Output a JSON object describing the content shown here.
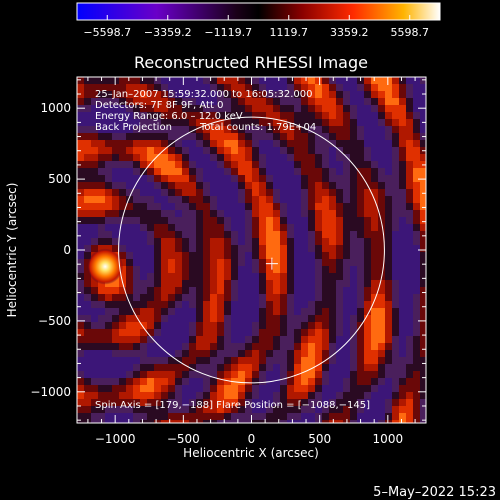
{
  "colorbar": {
    "tick_labels": [
      "−5598.7",
      "−3359.2",
      "−1119.7",
      "1119.7",
      "3359.2",
      "5598.7"
    ],
    "range": [
      -5598.7,
      5598.7
    ],
    "colors": [
      "#0000ff",
      "#6a00c8",
      "#1a0018",
      "#000000",
      "#8a0000",
      "#ff2a00",
      "#ffb400",
      "#ffffff"
    ]
  },
  "chart_data": {
    "type": "heatmap",
    "title": "Reconstructed RHESSI Image",
    "xlabel": "Heliocentric X (arcsec)",
    "ylabel": "Heliocentric Y (arcsec)",
    "xlim": [
      -1280,
      1280
    ],
    "ylim": [
      -1220,
      1220
    ],
    "x_ticks": [
      -1000,
      -500,
      0,
      500,
      1000
    ],
    "y_ticks": [
      -1000,
      -500,
      0,
      500,
      1000
    ],
    "x_tick_labels": [
      "−1000",
      "−500",
      "0",
      "500",
      "1000"
    ],
    "y_tick_labels": [
      "−1000",
      "−500",
      "0",
      "500",
      "1000"
    ],
    "solar_limb_radius_arcsec": 975,
    "spin_axis": [
      179,
      -188
    ],
    "flare_position": [
      -1088,
      -145
    ],
    "peak_value": 5598.7,
    "annotations": [
      "25–Jan–2007 15:59:32.000 to 16:05:32.000",
      "Detectors: 7F 8F 9F, Att 0",
      "Energy Range: 6.0 – 12.0 keV",
      "Back Projection",
      "Total counts: 1.79E+04"
    ],
    "footer_text": "Spin Axis = [179,−188]   Flare Position = [−1088,−145]"
  },
  "timestamp": "5–May–2022 15:23"
}
